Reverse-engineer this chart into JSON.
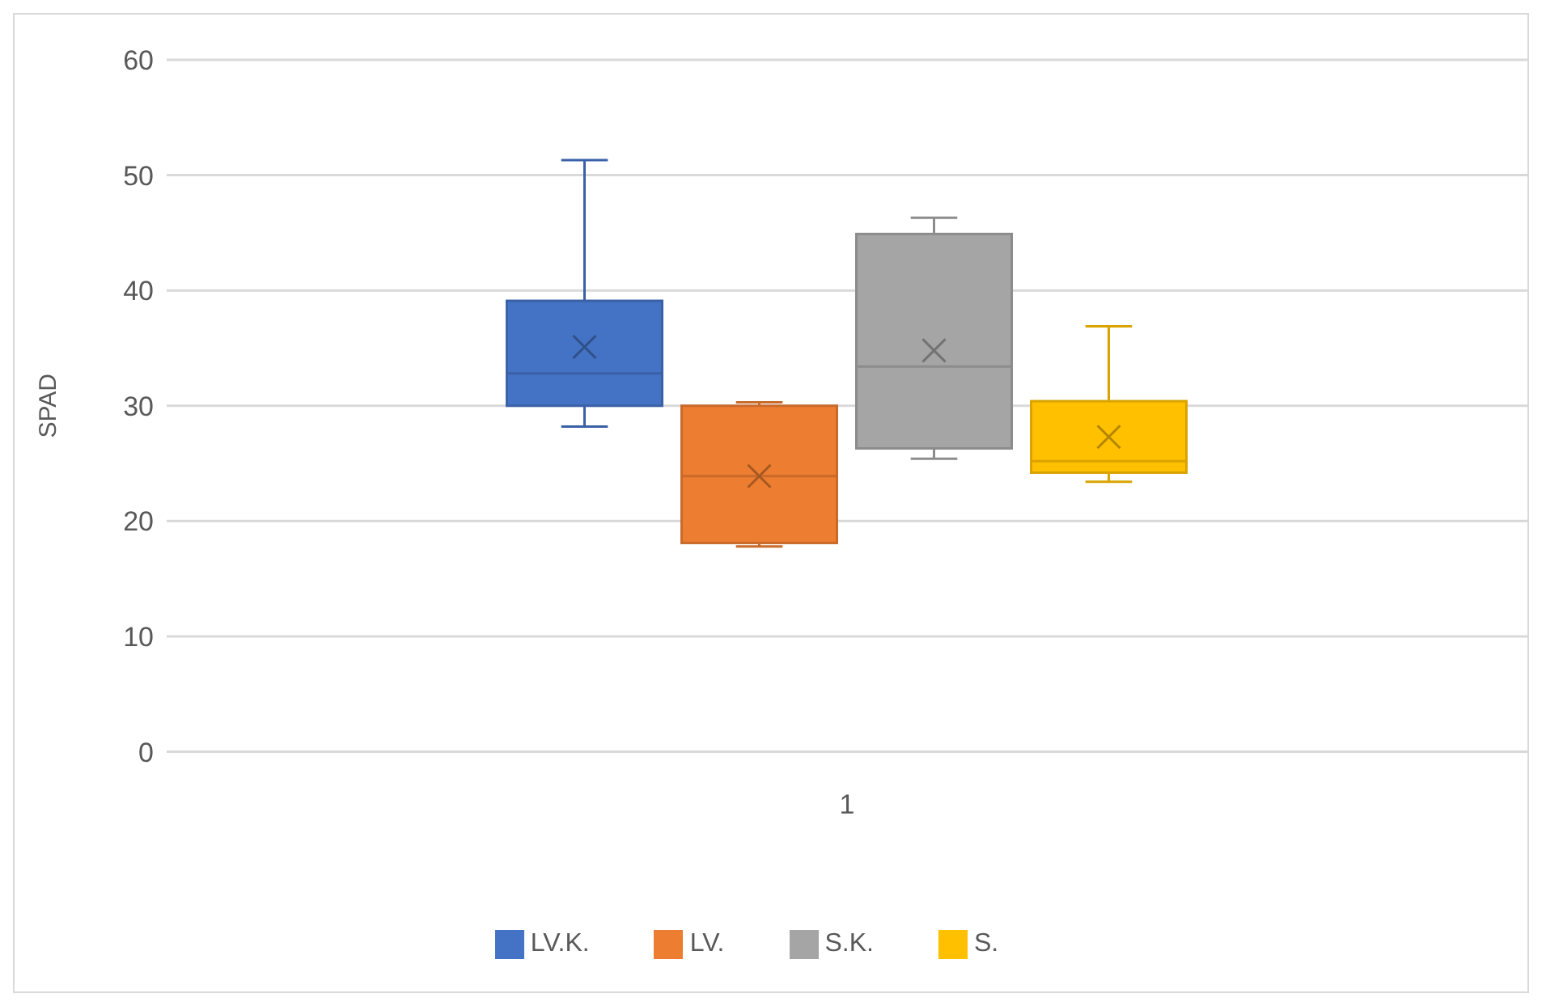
{
  "chart_data": {
    "type": "box",
    "ylabel": "SPAD",
    "categories": [
      "1"
    ],
    "ylim": [
      0,
      60
    ],
    "yticks": [
      0,
      10,
      20,
      30,
      40,
      50,
      60
    ],
    "grid": "y",
    "legend": "bottom",
    "marker": "cross",
    "series": [
      {
        "name": "LV.K.",
        "color": "#4472c4",
        "boxes": [
          {
            "low": 28.2,
            "q1": 30.0,
            "median": 32.8,
            "q3": 39.1,
            "high": 51.3,
            "mean": 35.1
          }
        ]
      },
      {
        "name": "LV.",
        "color": "#ed7d31",
        "boxes": [
          {
            "low": 17.8,
            "q1": 18.1,
            "median": 23.9,
            "q3": 30.0,
            "high": 30.3,
            "mean": 23.9
          }
        ]
      },
      {
        "name": "S.K.",
        "color": "#a5a5a5",
        "boxes": [
          {
            "low": 25.4,
            "q1": 26.3,
            "median": 33.4,
            "q3": 44.9,
            "high": 46.3,
            "mean": 34.8
          }
        ]
      },
      {
        "name": "S.",
        "color": "#ffc000",
        "boxes": [
          {
            "low": 23.4,
            "q1": 24.2,
            "median": 25.2,
            "q3": 30.4,
            "high": 36.9,
            "mean": 27.3
          }
        ]
      }
    ]
  }
}
